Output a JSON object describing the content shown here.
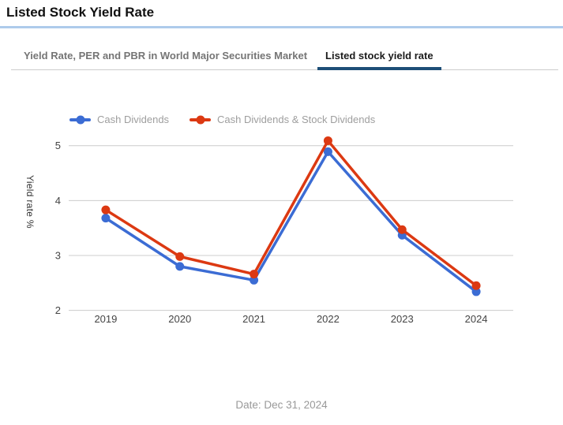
{
  "header": {
    "title": "Listed Stock Yield Rate"
  },
  "tabs": [
    {
      "label": "Yield Rate, PER and PBR in World Major Securities Market",
      "active": false
    },
    {
      "label": "Listed stock yield rate",
      "active": true
    }
  ],
  "chart_data": {
    "type": "line",
    "categories": [
      "2019",
      "2020",
      "2021",
      "2022",
      "2023",
      "2024"
    ],
    "series": [
      {
        "name": "Cash Dividends",
        "color": "#3b6cd4",
        "values": [
          3.68,
          2.8,
          2.55,
          4.89,
          3.37,
          2.34
        ]
      },
      {
        "name": "Cash Dividends & Stock Dividends",
        "color": "#dc3912",
        "values": [
          3.83,
          2.98,
          2.66,
          5.09,
          3.47,
          2.45
        ]
      }
    ],
    "xlabel": "",
    "ylabel": "Yield rate %",
    "ylim": [
      2,
      5
    ],
    "yticks": [
      2,
      3,
      4,
      5
    ],
    "grid": true,
    "legend_position": "top"
  },
  "footer": {
    "date_label": "Date: Dec 31, 2024"
  },
  "colors": {
    "series_blue": "#3b6cd4",
    "series_red": "#dc3912",
    "active_tab_underline": "#1d4e77",
    "title_rule": "#aecbeb",
    "tab_rule": "#cccccc",
    "gridline": "#cccccc",
    "axis_text": "#444444",
    "legend_text": "#9e9e9e",
    "inactive_tab_text": "#757575",
    "footer_text": "#999999"
  }
}
